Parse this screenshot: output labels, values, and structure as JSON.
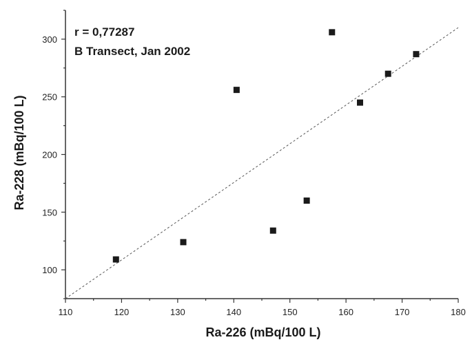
{
  "chart_data": {
    "type": "scatter",
    "xlabel": "Ra-226 (mBq/100 L)",
    "ylabel": "Ra-228 (mBq/100 L)",
    "xlim": [
      110,
      180
    ],
    "ylim": [
      75,
      325
    ],
    "xticks": [
      "110",
      "120",
      "130",
      "140",
      "150",
      "160",
      "170",
      "180"
    ],
    "yticks": [
      "100",
      "150",
      "200",
      "250",
      "300"
    ],
    "annotations": [
      "r = 0,77287",
      "B Transect, Jan 2002"
    ],
    "grid": false,
    "series": [
      {
        "points": [
          {
            "x": 119,
            "y": 109
          },
          {
            "x": 131,
            "y": 124
          },
          {
            "x": 140.5,
            "y": 256
          },
          {
            "x": 147,
            "y": 134
          },
          {
            "x": 153,
            "y": 160
          },
          {
            "x": 157.5,
            "y": 306
          },
          {
            "x": 162.5,
            "y": 245
          },
          {
            "x": 167.5,
            "y": 270
          },
          {
            "x": 172.5,
            "y": 287
          }
        ]
      }
    ],
    "fit_line": {
      "x": [
        110,
        180
      ],
      "y": [
        75,
        310
      ]
    },
    "colors": {
      "marker": "#1a1a1a",
      "axis": "#333333",
      "fit_line": "#555555"
    }
  }
}
